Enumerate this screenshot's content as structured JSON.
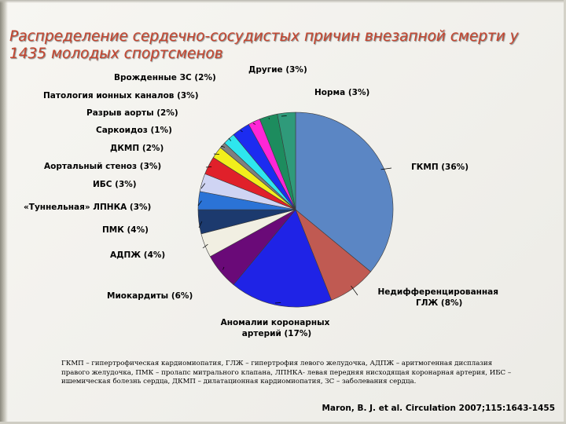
{
  "slide": {
    "title": "Распределение сердечно-сосудистых причин внезапной смерти у 1435 молодых спортсменов",
    "footnote": "ГКМП – гипертрофическая кардиомиопатия, ГЛЖ – гипертрофия левого желудочка, АДПЖ – аритмогенная дисплазия правого желудочка, ПМК – пролапс митрального клапана, ЛПНКА- левая передняя нисходящая коронарная артерия, ИБС – ишемическая болезнь сердца, ДКМП – дилатационная кардиомиопатия, ЗС – заболевания сердца.",
    "citation": "Maron, B. J. et al. Circulation 2007;115:1643-1455"
  },
  "chart_data": {
    "type": "pie",
    "title": "Распределение сердечно-сосудистых причин внезапной смерти у 1435 молодых спортсменов",
    "slices": [
      {
        "label": "ГКМП (36%)",
        "value": 36,
        "color": "#5b86c4"
      },
      {
        "label": "Недифференцированная ГЛЖ (8%)",
        "value": 8,
        "color": "#c05a52"
      },
      {
        "label": "Аномалии коронарных артерий (17%)",
        "value": 17,
        "color": "#1f23e6"
      },
      {
        "label": "Миокардиты (6%)",
        "value": 6,
        "color": "#6a0a78"
      },
      {
        "label": "АДПЖ (4%)",
        "value": 4,
        "color": "#f1efe2"
      },
      {
        "label": "ПМК (4%)",
        "value": 4,
        "color": "#1c3a6e"
      },
      {
        "label": "«Туннельная» ЛПНКА (3%)",
        "value": 3,
        "color": "#2b73d6"
      },
      {
        "label": "ИБС (3%)",
        "value": 3,
        "color": "#cfd4f3"
      },
      {
        "label": "Аортальный стеноз (3%)",
        "value": 3,
        "color": "#e0202a"
      },
      {
        "label": "ДКМП (2%)",
        "value": 2,
        "color": "#f2ee1c"
      },
      {
        "label": "Саркоидоз (1%)",
        "value": 1,
        "color": "#7f7f7f"
      },
      {
        "label": "Разрыв аорты (2%)",
        "value": 2,
        "color": "#2ee6ee"
      },
      {
        "label": "Патология ионных каналов (3%)",
        "value": 3,
        "color": "#1c2cf0"
      },
      {
        "label": "Врожденные ЗС (2%)",
        "value": 2,
        "color": "#ff26d6"
      },
      {
        "label": "Другие (3%)",
        "value": 3,
        "color": "#1d8c5e"
      },
      {
        "label": "Норма (3%)",
        "value": 3,
        "color": "#2f9a7a"
      }
    ]
  }
}
